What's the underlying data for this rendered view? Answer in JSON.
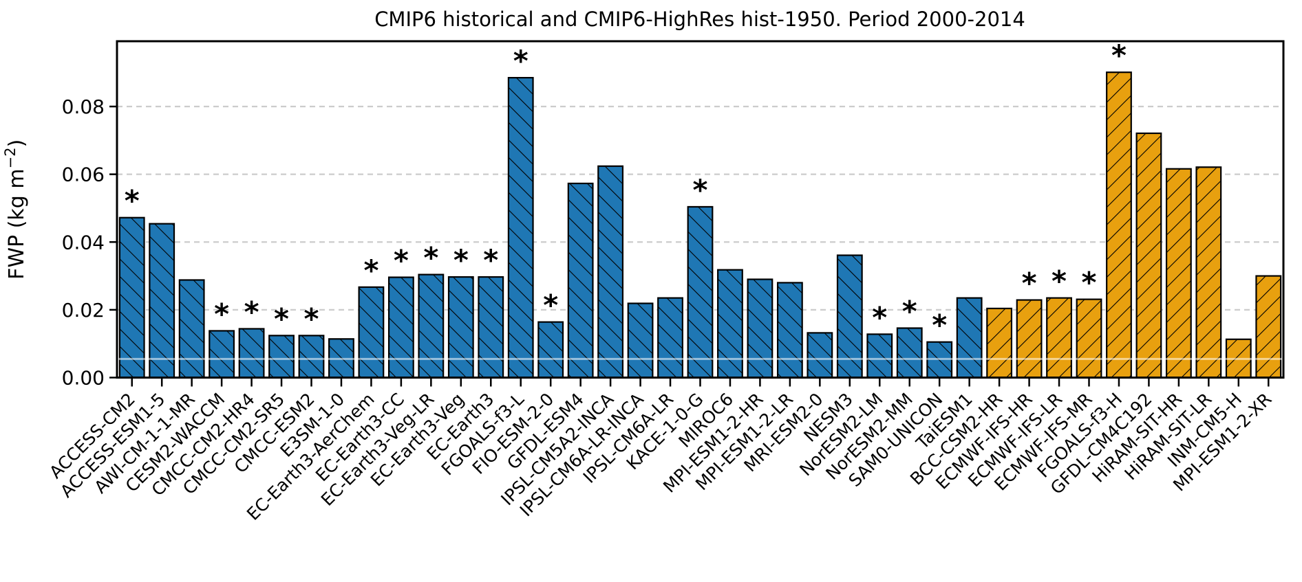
{
  "figure": {
    "title": "CMIP6 historical and CMIP6-HighRes hist-1950. Period 2000-2014"
  },
  "chart_data": {
    "type": "bar",
    "title": "CMIP6 historical and CMIP6-HighRes hist-1950. Period 2000-2014",
    "xlabel": "",
    "ylabel": "FWP (kg m⁻²)",
    "ylabel_parts": {
      "base": "FWP (kg m",
      "sup": "−2",
      "close": ")"
    },
    "ylim": [
      0,
      0.0993
    ],
    "yticks": [
      0.0,
      0.02,
      0.04,
      0.06,
      0.08
    ],
    "ytick_labels": [
      "0.00",
      "0.02",
      "0.04",
      "0.06",
      "0.08"
    ],
    "grid": {
      "horizontal": true,
      "style": "dashed",
      "color": "#cccccc"
    },
    "legend": null,
    "marker_meaning": "asterisk above bar",
    "groups": {
      "historical": {
        "color": "#1f77b4",
        "hatch": "\\"
      },
      "hist-1950": {
        "color": "#e8a00f",
        "hatch": "/"
      }
    },
    "bar_edge_color": "#000000",
    "reference_line": {
      "value": 0.0055,
      "color": "rgba(255,255,255,0.55)"
    },
    "bars": [
      {
        "model": "ACCESS-CM2",
        "value": 0.0472,
        "group": "historical",
        "significant": true
      },
      {
        "model": "ACCESS-ESM1-5",
        "value": 0.0454,
        "group": "historical",
        "significant": false
      },
      {
        "model": "AWI-CM-1-1-MR",
        "value": 0.0288,
        "group": "historical",
        "significant": false
      },
      {
        "model": "CESM2-WACCM",
        "value": 0.0138,
        "group": "historical",
        "significant": true
      },
      {
        "model": "CMCC-CM2-HR4",
        "value": 0.0144,
        "group": "historical",
        "significant": true
      },
      {
        "model": "CMCC-CM2-SR5",
        "value": 0.0124,
        "group": "historical",
        "significant": true
      },
      {
        "model": "CMCC-ESM2",
        "value": 0.0124,
        "group": "historical",
        "significant": true
      },
      {
        "model": "E3SM-1-0",
        "value": 0.0114,
        "group": "historical",
        "significant": false
      },
      {
        "model": "EC-Earth3-AerChem",
        "value": 0.0267,
        "group": "historical",
        "significant": true
      },
      {
        "model": "EC-Earth3-CC",
        "value": 0.0296,
        "group": "historical",
        "significant": true
      },
      {
        "model": "EC-Earth3-Veg-LR",
        "value": 0.0304,
        "group": "historical",
        "significant": true
      },
      {
        "model": "EC-Earth3-Veg",
        "value": 0.0297,
        "group": "historical",
        "significant": true
      },
      {
        "model": "EC-Earth3",
        "value": 0.0297,
        "group": "historical",
        "significant": true
      },
      {
        "model": "FGOALS-f3-L",
        "value": 0.0885,
        "group": "historical",
        "significant": true
      },
      {
        "model": "FIO-ESM-2-0",
        "value": 0.0164,
        "group": "historical",
        "significant": true
      },
      {
        "model": "GFDL-ESM4",
        "value": 0.0573,
        "group": "historical",
        "significant": false
      },
      {
        "model": "IPSL-CM5A2-INCA",
        "value": 0.0624,
        "group": "historical",
        "significant": false
      },
      {
        "model": "IPSL-CM6A-LR-INCA",
        "value": 0.0219,
        "group": "historical",
        "significant": false
      },
      {
        "model": "IPSL-CM6A-LR",
        "value": 0.0235,
        "group": "historical",
        "significant": false
      },
      {
        "model": "KACE-1-0-G",
        "value": 0.0504,
        "group": "historical",
        "significant": true
      },
      {
        "model": "MIROC6",
        "value": 0.0318,
        "group": "historical",
        "significant": false
      },
      {
        "model": "MPI-ESM1-2-HR",
        "value": 0.029,
        "group": "historical",
        "significant": false
      },
      {
        "model": "MPI-ESM1-2-LR",
        "value": 0.028,
        "group": "historical",
        "significant": false
      },
      {
        "model": "MRI-ESM2-0",
        "value": 0.0132,
        "group": "historical",
        "significant": false
      },
      {
        "model": "NESM3",
        "value": 0.0361,
        "group": "historical",
        "significant": false
      },
      {
        "model": "NorESM2-LM",
        "value": 0.0128,
        "group": "historical",
        "significant": true
      },
      {
        "model": "NorESM2-MM",
        "value": 0.0146,
        "group": "historical",
        "significant": true
      },
      {
        "model": "SAM0-UNICON",
        "value": 0.0105,
        "group": "historical",
        "significant": true
      },
      {
        "model": "TaiESM1",
        "value": 0.0235,
        "group": "historical",
        "significant": false
      },
      {
        "model": "BCC-CSM2-HR",
        "value": 0.0204,
        "group": "hist-1950",
        "significant": false
      },
      {
        "model": "ECMWF-IFS-HR",
        "value": 0.0229,
        "group": "hist-1950",
        "significant": true
      },
      {
        "model": "ECMWF-IFS-LR",
        "value": 0.0235,
        "group": "hist-1950",
        "significant": true
      },
      {
        "model": "ECMWF-IFS-MR",
        "value": 0.0231,
        "group": "hist-1950",
        "significant": true
      },
      {
        "model": "FGOALS-f3-H",
        "value": 0.0901,
        "group": "hist-1950",
        "significant": true
      },
      {
        "model": "GFDL-CM4C192",
        "value": 0.0721,
        "group": "hist-1950",
        "significant": false
      },
      {
        "model": "HiRAM-SIT-HR",
        "value": 0.0616,
        "group": "hist-1950",
        "significant": false
      },
      {
        "model": "HiRAM-SIT-LR",
        "value": 0.0621,
        "group": "hist-1950",
        "significant": false
      },
      {
        "model": "INM-CM5-H",
        "value": 0.0113,
        "group": "hist-1950",
        "significant": false
      },
      {
        "model": "MPI-ESM1-2-XR",
        "value": 0.03,
        "group": "hist-1950",
        "significant": false
      }
    ]
  }
}
